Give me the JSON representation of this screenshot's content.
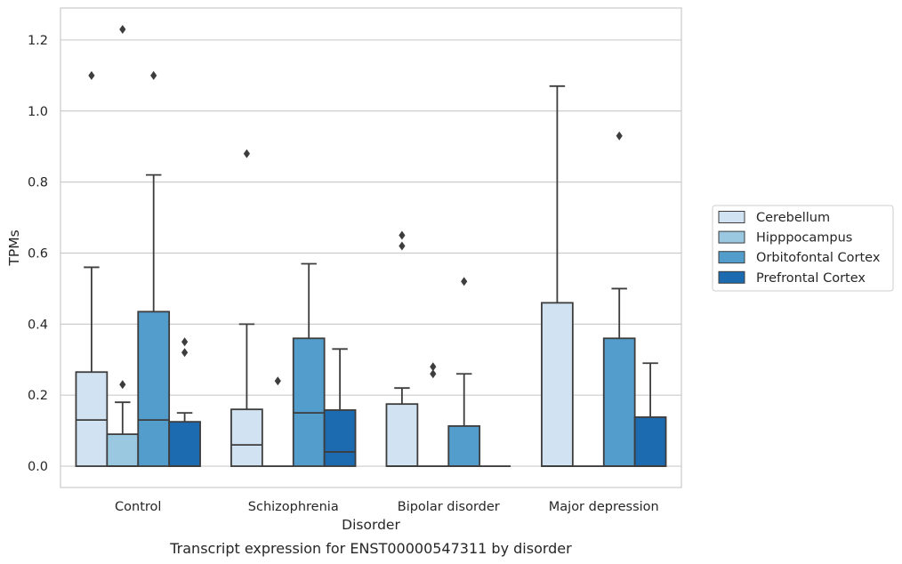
{
  "chart_data": {
    "type": "box",
    "xlabel": "Disorder",
    "ylabel": "TPMs",
    "caption": "Transcript expression for ENST00000547311 by disorder",
    "categories": [
      "Control",
      "Schizophrenia",
      "Bipolar disorder",
      "Major depression"
    ],
    "ylim": [
      -0.06,
      1.29
    ],
    "yticks": [
      {
        "value": 0.0,
        "label": "0.0"
      },
      {
        "value": 0.2,
        "label": "0.2"
      },
      {
        "value": 0.4,
        "label": "0.4"
      },
      {
        "value": 0.6,
        "label": "0.6"
      },
      {
        "value": 0.8,
        "label": "0.8"
      },
      {
        "value": 1.0,
        "label": "1.0"
      },
      {
        "value": 1.2,
        "label": "1.2"
      }
    ],
    "grid": "horizontal",
    "legend_position": "right",
    "series": [
      {
        "name": "Cerebellum",
        "color": "#d1e2f2",
        "boxes": [
          {
            "q1": 0,
            "median": 0.13,
            "q3": 0.265,
            "whisker_low": 0,
            "whisker_high": 0.56,
            "outliers": [
              1.1
            ]
          },
          {
            "q1": 0,
            "median": 0.06,
            "q3": 0.16,
            "whisker_low": 0,
            "whisker_high": 0.4,
            "outliers": [
              0.88
            ]
          },
          {
            "q1": 0,
            "median": 0,
            "q3": 0.175,
            "whisker_low": 0,
            "whisker_high": 0.22,
            "outliers": [
              0.62,
              0.65
            ]
          },
          {
            "q1": 0,
            "median": 0,
            "q3": 0.46,
            "whisker_low": 0,
            "whisker_high": 1.07,
            "outliers": []
          }
        ]
      },
      {
        "name": "Hipppocampus",
        "color": "#9ac8e0",
        "boxes": [
          {
            "q1": 0,
            "median": 0,
            "q3": 0.09,
            "whisker_low": 0,
            "whisker_high": 0.18,
            "outliers": [
              0.23,
              1.23
            ]
          },
          {
            "q1": 0,
            "median": 0,
            "q3": 0,
            "whisker_low": 0,
            "whisker_high": 0,
            "outliers": [
              0.24
            ]
          },
          {
            "q1": 0,
            "median": 0,
            "q3": 0,
            "whisker_low": 0,
            "whisker_high": 0,
            "outliers": [
              0.26,
              0.28
            ]
          },
          {
            "q1": 0,
            "median": 0,
            "q3": 0,
            "whisker_low": 0,
            "whisker_high": 0,
            "outliers": []
          }
        ]
      },
      {
        "name": "Orbitofontal Cortex",
        "color": "#529dcc",
        "boxes": [
          {
            "q1": 0,
            "median": 0.13,
            "q3": 0.435,
            "whisker_low": 0,
            "whisker_high": 0.82,
            "outliers": [
              1.1
            ]
          },
          {
            "q1": 0,
            "median": 0.15,
            "q3": 0.36,
            "whisker_low": 0,
            "whisker_high": 0.57,
            "outliers": []
          },
          {
            "q1": 0,
            "median": 0,
            "q3": 0.113,
            "whisker_low": 0,
            "whisker_high": 0.26,
            "outliers": [
              0.52
            ]
          },
          {
            "q1": 0,
            "median": 0,
            "q3": 0.36,
            "whisker_low": 0,
            "whisker_high": 0.5,
            "outliers": [
              0.93
            ]
          }
        ]
      },
      {
        "name": "Prefrontal Cortex",
        "color": "#1c6aaf",
        "boxes": [
          {
            "q1": 0,
            "median": 0,
            "q3": 0.125,
            "whisker_low": 0,
            "whisker_high": 0.15,
            "outliers": [
              0.32,
              0.35
            ]
          },
          {
            "q1": 0,
            "median": 0.04,
            "q3": 0.158,
            "whisker_low": 0,
            "whisker_high": 0.33,
            "outliers": []
          },
          {
            "q1": 0,
            "median": 0,
            "q3": 0,
            "whisker_low": 0,
            "whisker_high": 0,
            "outliers": []
          },
          {
            "q1": 0,
            "median": 0,
            "q3": 0.138,
            "whisker_low": 0,
            "whisker_high": 0.29,
            "outliers": []
          }
        ]
      }
    ]
  }
}
